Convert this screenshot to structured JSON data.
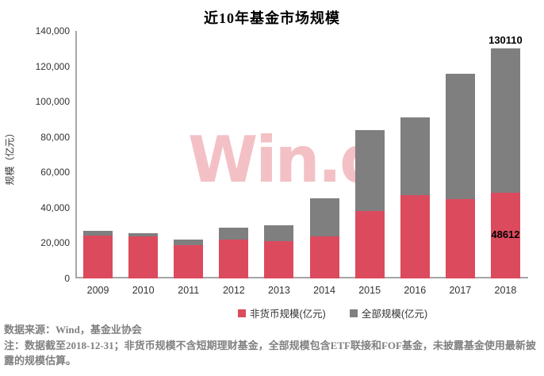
{
  "title": "近10年基金市场规模",
  "watermark": "Win.d",
  "source_line": "数据来源：Wind，基金业协会",
  "note_line": "注：数据截至2018-12-31；非货币规模不含短期理财基金，全部规模包含ETF联接和FOF基金，未披露基金使用最新披露的规模估算。",
  "colors": {
    "nonmoney": "#dc4a5e",
    "total": "#7f7f7f",
    "watermark": "#f3c1c5",
    "axis": "#a6a6a6",
    "note_text": "#808080",
    "label_text": "#000000"
  },
  "chart_data": {
    "type": "bar",
    "style": "overlapped",
    "title": "近10年基金市场规模",
    "xlabel": "",
    "ylabel": "规模（亿元）",
    "ylim": [
      0,
      140000
    ],
    "grid": false,
    "legend_position": "bottom",
    "categories": [
      "2009",
      "2010",
      "2011",
      "2012",
      "2013",
      "2014",
      "2015",
      "2016",
      "2017",
      "2018"
    ],
    "series": [
      {
        "name": "非货币规模(亿元)",
        "color_key": "nonmoney",
        "values": [
          24200,
          23600,
          19000,
          21900,
          21200,
          23900,
          38300,
          47200,
          44700,
          48612
        ]
      },
      {
        "name": "全部规模(亿元)",
        "color_key": "total",
        "values": [
          26900,
          25400,
          21800,
          28600,
          29900,
          45500,
          83900,
          91300,
          115900,
          130110
        ]
      }
    ],
    "yticks": [
      {
        "value": 0,
        "label": "0"
      },
      {
        "value": 20000,
        "label": "20,000"
      },
      {
        "value": 40000,
        "label": "40,000"
      },
      {
        "value": 60000,
        "label": "60,000"
      },
      {
        "value": 80000,
        "label": "80,000"
      },
      {
        "value": 100000,
        "label": "100,000"
      },
      {
        "value": 120000,
        "label": "120,000"
      },
      {
        "value": 140000,
        "label": "140,000"
      }
    ],
    "annotations": [
      {
        "category": "2018",
        "series": "全部规模(亿元)",
        "text": "130110",
        "position": "above"
      },
      {
        "category": "2018",
        "series": "非货币规模(亿元)",
        "text": "48612",
        "position": "center"
      }
    ]
  }
}
